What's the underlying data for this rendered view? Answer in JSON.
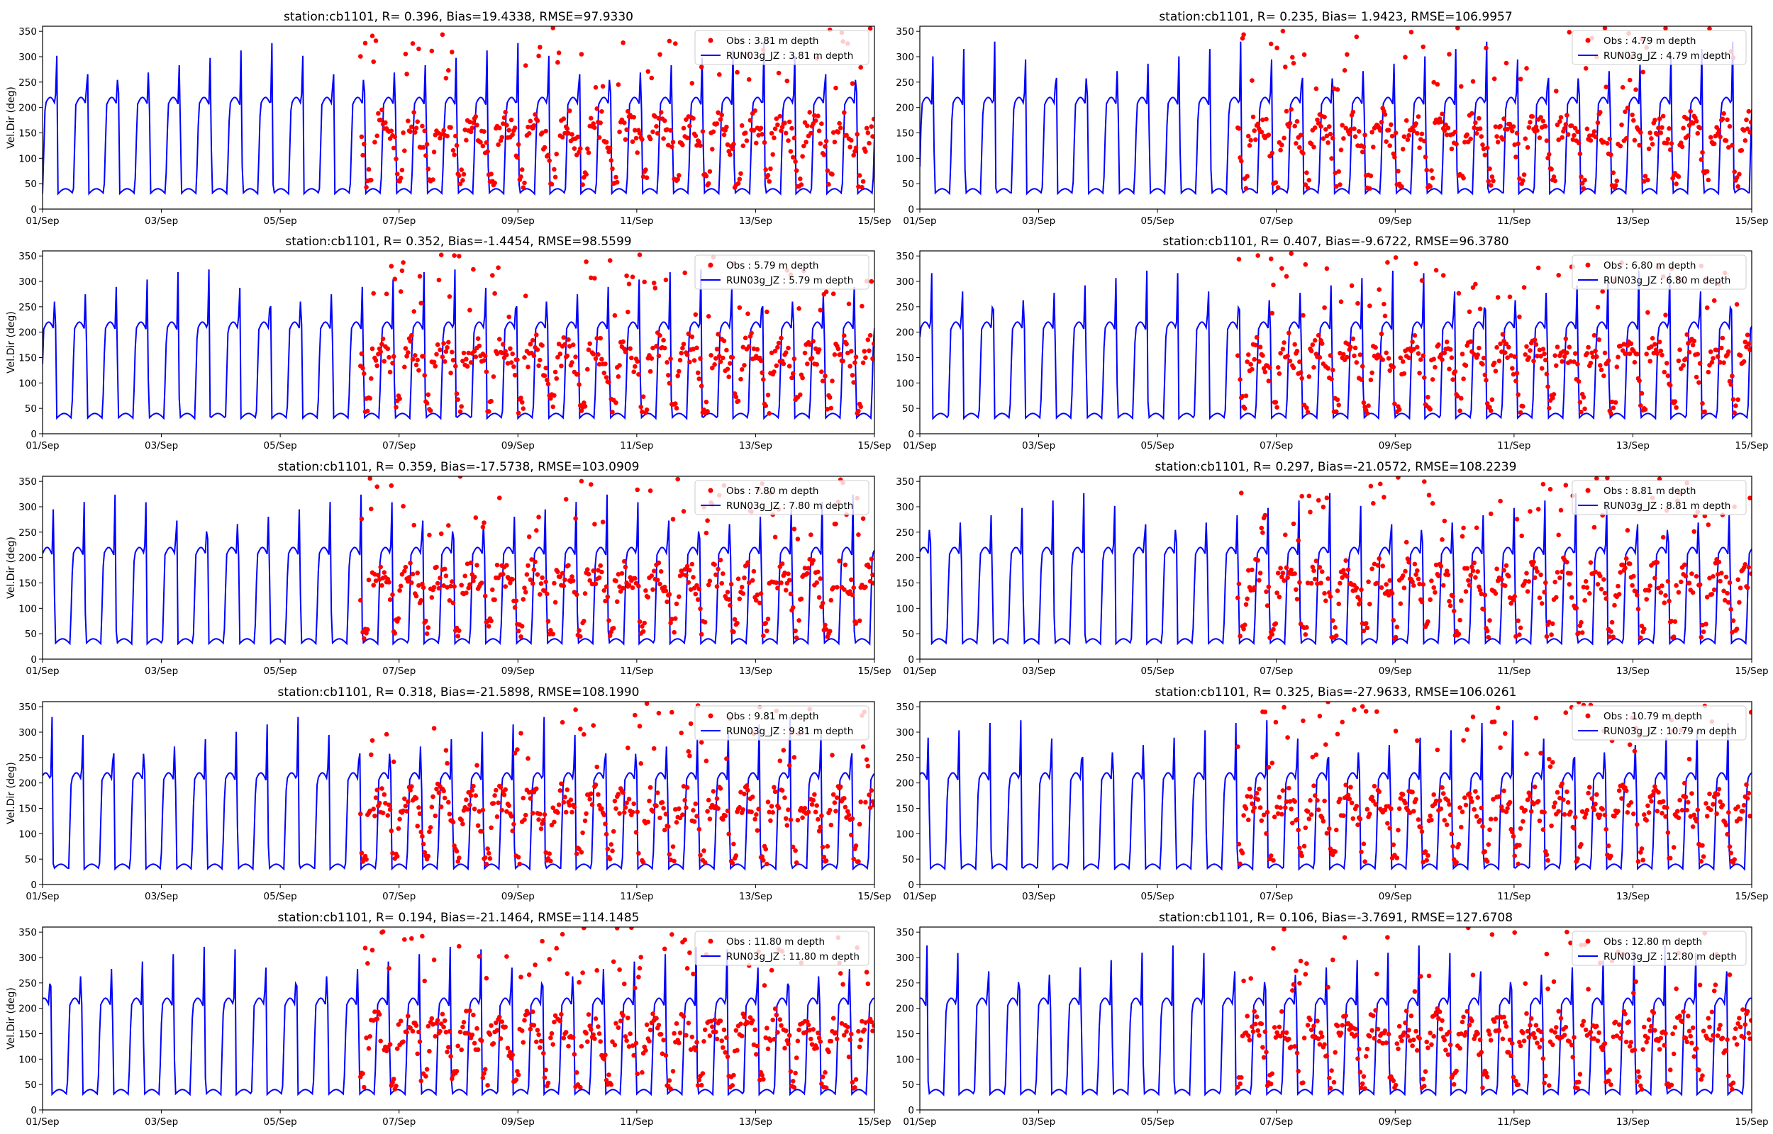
{
  "chart_data": [
    {
      "type": "line",
      "title": "station:cb1101, R= 0.396, Bias=19.4338, RMSE=97.9330",
      "ylabel": "Vel.Dir (deg)",
      "obs_label": "Obs : 3.81 m depth",
      "model_label": "RUN03g_JZ : 3.81 m depth",
      "obs_color": "#ff0000",
      "model_color": "#0000ff",
      "xlim": [
        "01/Sep",
        "15/Sep"
      ],
      "ylim": [
        0,
        360
      ],
      "xticks": [
        "01/Sep",
        "03/Sep",
        "05/Sep",
        "07/Sep",
        "09/Sep",
        "11/Sep",
        "13/Sep",
        "15/Sep"
      ],
      "yticks": [
        "0",
        "50",
        "100",
        "150",
        "200",
        "250",
        "300",
        "350"
      ],
      "legend": "top-right"
    },
    {
      "type": "line",
      "title": "station:cb1101, R= 0.235, Bias= 1.9423, RMSE=106.9957",
      "ylabel": "",
      "obs_label": "Obs : 4.79 m depth",
      "model_label": "RUN03g_JZ : 4.79 m depth",
      "obs_color": "#ff0000",
      "model_color": "#0000ff",
      "xlim": [
        "01/Sep",
        "15/Sep"
      ],
      "ylim": [
        0,
        360
      ],
      "xticks": [
        "01/Sep",
        "03/Sep",
        "05/Sep",
        "07/Sep",
        "09/Sep",
        "11/Sep",
        "13/Sep",
        "15/Sep"
      ],
      "yticks": [
        "0",
        "50",
        "100",
        "150",
        "200",
        "250",
        "300",
        "350"
      ],
      "legend": "top-right"
    },
    {
      "type": "line",
      "title": "station:cb1101, R= 0.352, Bias=-1.4454, RMSE=98.5599",
      "ylabel": "Vel.Dir (deg)",
      "obs_label": "Obs : 5.79 m depth",
      "model_label": "RUN03g_JZ : 5.79 m depth",
      "obs_color": "#ff0000",
      "model_color": "#0000ff",
      "xlim": [
        "01/Sep",
        "15/Sep"
      ],
      "ylim": [
        0,
        360
      ],
      "xticks": [
        "01/Sep",
        "03/Sep",
        "05/Sep",
        "07/Sep",
        "09/Sep",
        "11/Sep",
        "13/Sep",
        "15/Sep"
      ],
      "yticks": [
        "0",
        "50",
        "100",
        "150",
        "200",
        "250",
        "300",
        "350"
      ],
      "legend": "top-right"
    },
    {
      "type": "line",
      "title": "station:cb1101, R= 0.407, Bias=-9.6722, RMSE=96.3780",
      "ylabel": "",
      "obs_label": "Obs : 6.80 m depth",
      "model_label": "RUN03g_JZ : 6.80 m depth",
      "obs_color": "#ff0000",
      "model_color": "#0000ff",
      "xlim": [
        "01/Sep",
        "15/Sep"
      ],
      "ylim": [
        0,
        360
      ],
      "xticks": [
        "01/Sep",
        "03/Sep",
        "05/Sep",
        "07/Sep",
        "09/Sep",
        "11/Sep",
        "13/Sep",
        "15/Sep"
      ],
      "yticks": [
        "0",
        "50",
        "100",
        "150",
        "200",
        "250",
        "300",
        "350"
      ],
      "legend": "top-right"
    },
    {
      "type": "line",
      "title": "station:cb1101, R= 0.359, Bias=-17.5738, RMSE=103.0909",
      "ylabel": "Vel.Dir (deg)",
      "obs_label": "Obs : 7.80 m depth",
      "model_label": "RUN03g_JZ : 7.80 m depth",
      "obs_color": "#ff0000",
      "model_color": "#0000ff",
      "xlim": [
        "01/Sep",
        "15/Sep"
      ],
      "ylim": [
        0,
        360
      ],
      "xticks": [
        "01/Sep",
        "03/Sep",
        "05/Sep",
        "07/Sep",
        "09/Sep",
        "11/Sep",
        "13/Sep",
        "15/Sep"
      ],
      "yticks": [
        "0",
        "50",
        "100",
        "150",
        "200",
        "250",
        "300",
        "350"
      ],
      "legend": "top-right"
    },
    {
      "type": "line",
      "title": "station:cb1101, R= 0.297, Bias=-21.0572, RMSE=108.2239",
      "ylabel": "",
      "obs_label": "Obs : 8.81 m depth",
      "model_label": "RUN03g_JZ : 8.81 m depth",
      "obs_color": "#ff0000",
      "model_color": "#0000ff",
      "xlim": [
        "01/Sep",
        "15/Sep"
      ],
      "ylim": [
        0,
        360
      ],
      "xticks": [
        "01/Sep",
        "03/Sep",
        "05/Sep",
        "07/Sep",
        "09/Sep",
        "11/Sep",
        "13/Sep",
        "15/Sep"
      ],
      "yticks": [
        "0",
        "50",
        "100",
        "150",
        "200",
        "250",
        "300",
        "350"
      ],
      "legend": "top-right"
    },
    {
      "type": "line",
      "title": "station:cb1101, R= 0.318, Bias=-21.5898, RMSE=108.1990",
      "ylabel": "Vel.Dir (deg)",
      "obs_label": "Obs : 9.81 m depth",
      "model_label": "RUN03g_JZ : 9.81 m depth",
      "obs_color": "#ff0000",
      "model_color": "#0000ff",
      "xlim": [
        "01/Sep",
        "15/Sep"
      ],
      "ylim": [
        0,
        360
      ],
      "xticks": [
        "01/Sep",
        "03/Sep",
        "05/Sep",
        "07/Sep",
        "09/Sep",
        "11/Sep",
        "13/Sep",
        "15/Sep"
      ],
      "yticks": [
        "0",
        "50",
        "100",
        "150",
        "200",
        "250",
        "300",
        "350"
      ],
      "legend": "top-right"
    },
    {
      "type": "line",
      "title": "station:cb1101, R= 0.325, Bias=-27.9633, RMSE=106.0261",
      "ylabel": "",
      "obs_label": "Obs : 10.79 m depth",
      "model_label": "RUN03g_JZ : 10.79 m depth",
      "obs_color": "#ff0000",
      "model_color": "#0000ff",
      "xlim": [
        "01/Sep",
        "15/Sep"
      ],
      "ylim": [
        0,
        360
      ],
      "xticks": [
        "01/Sep",
        "03/Sep",
        "05/Sep",
        "07/Sep",
        "09/Sep",
        "11/Sep",
        "13/Sep",
        "15/Sep"
      ],
      "yticks": [
        "0",
        "50",
        "100",
        "150",
        "200",
        "250",
        "300",
        "350"
      ],
      "legend": "top-right"
    },
    {
      "type": "line",
      "title": "station:cb1101, R= 0.194, Bias=-21.1464, RMSE=114.1485",
      "ylabel": "Vel.Dir (deg)",
      "obs_label": "Obs : 11.80 m depth",
      "model_label": "RUN03g_JZ : 11.80 m depth",
      "obs_color": "#ff0000",
      "model_color": "#0000ff",
      "xlim": [
        "01/Sep",
        "15/Sep"
      ],
      "ylim": [
        0,
        360
      ],
      "xticks": [
        "01/Sep",
        "03/Sep",
        "05/Sep",
        "07/Sep",
        "09/Sep",
        "11/Sep",
        "13/Sep",
        "15/Sep"
      ],
      "yticks": [
        "0",
        "50",
        "100",
        "150",
        "200",
        "250",
        "300",
        "350"
      ],
      "legend": "top-right"
    },
    {
      "type": "line",
      "title": "station:cb1101, R= 0.106, Bias=-3.7691, RMSE=127.6708",
      "ylabel": "",
      "obs_label": "Obs : 12.80 m depth",
      "model_label": "RUN03g_JZ : 12.80 m depth",
      "obs_color": "#ff0000",
      "model_color": "#0000ff",
      "xlim": [
        "01/Sep",
        "15/Sep"
      ],
      "ylim": [
        0,
        360
      ],
      "xticks": [
        "01/Sep",
        "03/Sep",
        "05/Sep",
        "07/Sep",
        "09/Sep",
        "11/Sep",
        "13/Sep",
        "15/Sep"
      ],
      "yticks": [
        "0",
        "50",
        "100",
        "150",
        "200",
        "250",
        "300",
        "350"
      ],
      "legend": "top-right"
    }
  ]
}
